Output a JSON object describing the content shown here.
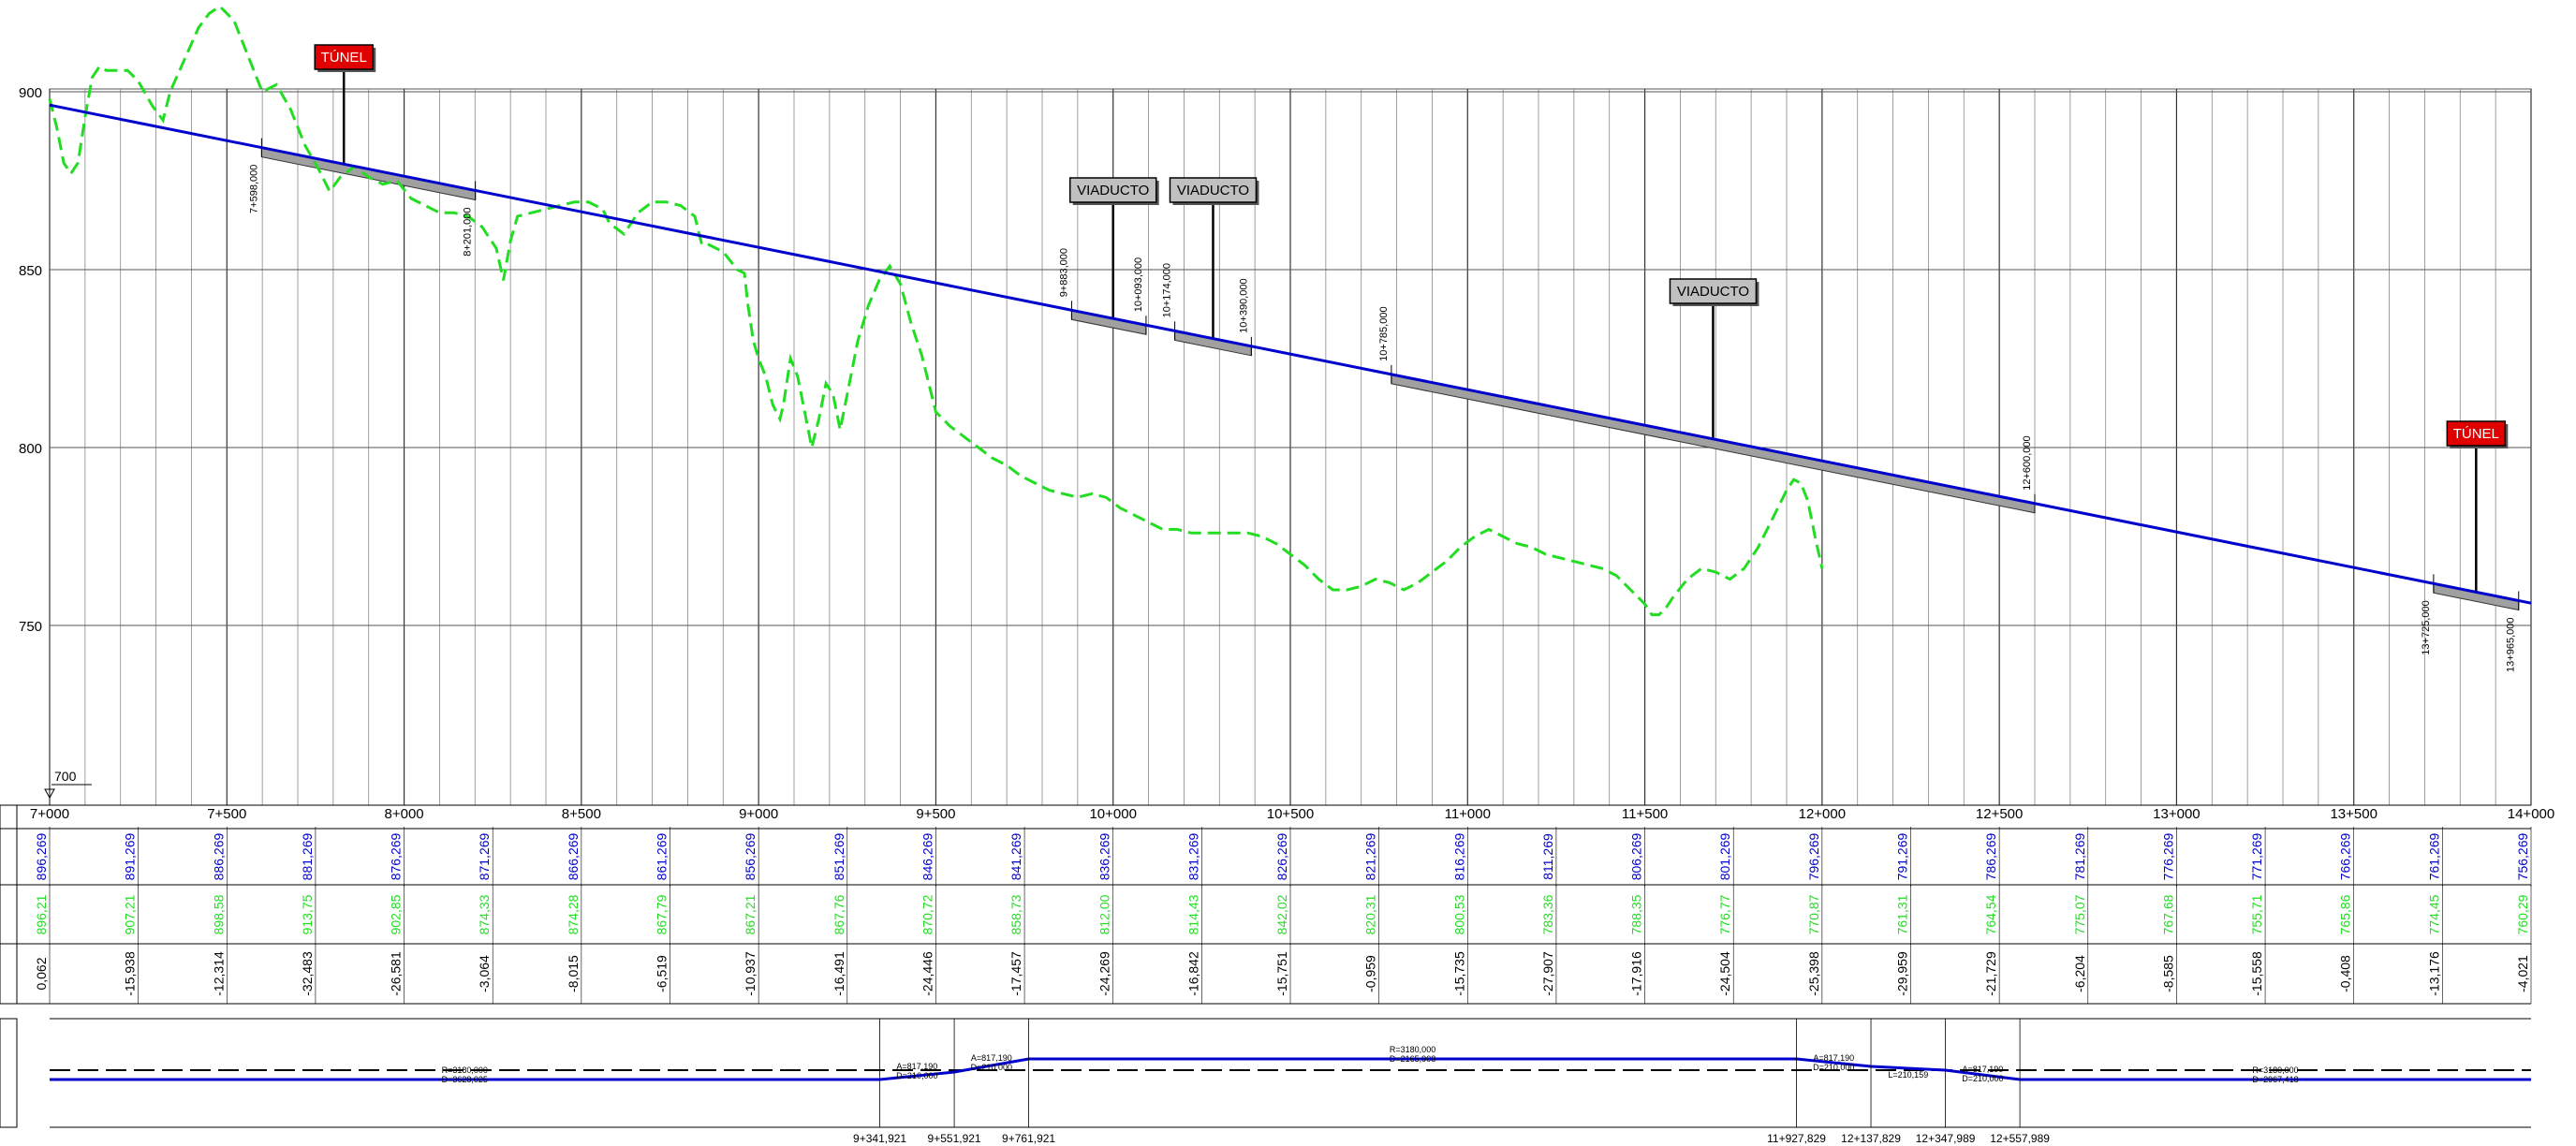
{
  "colors": {
    "grid": "#000000",
    "profile": "#0000cc",
    "terrain": "#22dd22",
    "structure_fill": "#a0a0a0",
    "tunnel": "#e00000",
    "viaduct": "#c0c0c0"
  },
  "profile": {
    "y_ticks": [
      "900",
      "850",
      "800",
      "750"
    ],
    "datum_label": "700",
    "x_ticks": [
      "7+000",
      "7+500",
      "8+000",
      "8+500",
      "9+000",
      "9+500",
      "10+000",
      "10+500",
      "11+000",
      "11+500",
      "12+000",
      "12+500",
      "13+000",
      "13+500",
      "14+000"
    ],
    "rail_start": 896.269,
    "rail_end": 756.269,
    "terrain": [
      [
        7000,
        898
      ],
      [
        7020,
        890
      ],
      [
        7040,
        880
      ],
      [
        7060,
        877
      ],
      [
        7080,
        880
      ],
      [
        7100,
        893
      ],
      [
        7120,
        904
      ],
      [
        7140,
        907
      ],
      [
        7160,
        906
      ],
      [
        7190,
        906
      ],
      [
        7220,
        906
      ],
      [
        7250,
        903
      ],
      [
        7290,
        896
      ],
      [
        7320,
        892
      ],
      [
        7340,
        900
      ],
      [
        7380,
        909
      ],
      [
        7420,
        918
      ],
      [
        7450,
        922
      ],
      [
        7480,
        924
      ],
      [
        7520,
        920
      ],
      [
        7560,
        910
      ],
      [
        7600,
        900
      ],
      [
        7640,
        902
      ],
      [
        7680,
        895
      ],
      [
        7720,
        885
      ],
      [
        7760,
        878
      ],
      [
        7790,
        872
      ],
      [
        7820,
        876
      ],
      [
        7860,
        879
      ],
      [
        7900,
        876
      ],
      [
        7940,
        874
      ],
      [
        7980,
        875
      ],
      [
        8020,
        870
      ],
      [
        8060,
        868
      ],
      [
        8100,
        866
      ],
      [
        8140,
        866
      ],
      [
        8180,
        865
      ],
      [
        8220,
        862
      ],
      [
        8260,
        856
      ],
      [
        8280,
        847
      ],
      [
        8300,
        858
      ],
      [
        8320,
        865
      ],
      [
        8360,
        866
      ],
      [
        8400,
        867
      ],
      [
        8440,
        868
      ],
      [
        8480,
        869
      ],
      [
        8520,
        869
      ],
      [
        8560,
        867
      ],
      [
        8580,
        863
      ],
      [
        8620,
        860
      ],
      [
        8660,
        866
      ],
      [
        8700,
        869
      ],
      [
        8740,
        869
      ],
      [
        8780,
        868
      ],
      [
        8820,
        865
      ],
      [
        8840,
        857
      ],
      [
        8860,
        857
      ],
      [
        8900,
        855
      ],
      [
        8940,
        850
      ],
      [
        8960,
        849
      ],
      [
        8970,
        840
      ],
      [
        8985,
        830
      ],
      [
        9000,
        825
      ],
      [
        9020,
        820
      ],
      [
        9040,
        812
      ],
      [
        9060,
        808
      ],
      [
        9070,
        812
      ],
      [
        9090,
        825
      ],
      [
        9110,
        820
      ],
      [
        9130,
        810
      ],
      [
        9150,
        800
      ],
      [
        9170,
        808
      ],
      [
        9190,
        818
      ],
      [
        9210,
        815
      ],
      [
        9230,
        805
      ],
      [
        9250,
        815
      ],
      [
        9280,
        830
      ],
      [
        9310,
        840
      ],
      [
        9340,
        847
      ],
      [
        9370,
        851
      ],
      [
        9400,
        846
      ],
      [
        9430,
        835
      ],
      [
        9460,
        826
      ],
      [
        9480,
        818
      ],
      [
        9500,
        810
      ],
      [
        9540,
        806
      ],
      [
        9580,
        803
      ],
      [
        9620,
        800
      ],
      [
        9660,
        797
      ],
      [
        9700,
        795
      ],
      [
        9740,
        792
      ],
      [
        9780,
        790
      ],
      [
        9820,
        788
      ],
      [
        9860,
        787
      ],
      [
        9900,
        786
      ],
      [
        9940,
        787
      ],
      [
        9980,
        786
      ],
      [
        10020,
        783
      ],
      [
        10060,
        781
      ],
      [
        10100,
        779
      ],
      [
        10140,
        777
      ],
      [
        10180,
        777
      ],
      [
        10220,
        776
      ],
      [
        10260,
        776
      ],
      [
        10300,
        776
      ],
      [
        10340,
        776
      ],
      [
        10380,
        776
      ],
      [
        10420,
        775
      ],
      [
        10460,
        773
      ],
      [
        10500,
        770
      ],
      [
        10540,
        767
      ],
      [
        10580,
        763
      ],
      [
        10620,
        760
      ],
      [
        10660,
        760
      ],
      [
        10700,
        761
      ],
      [
        10740,
        763
      ],
      [
        10780,
        762
      ],
      [
        10820,
        760
      ],
      [
        10860,
        762
      ],
      [
        10900,
        765
      ],
      [
        10940,
        768
      ],
      [
        10980,
        772
      ],
      [
        11020,
        775
      ],
      [
        11060,
        777
      ],
      [
        11100,
        775
      ],
      [
        11140,
        773
      ],
      [
        11180,
        772
      ],
      [
        11220,
        770
      ],
      [
        11260,
        769
      ],
      [
        11300,
        768
      ],
      [
        11340,
        767
      ],
      [
        11380,
        766
      ],
      [
        11420,
        764
      ],
      [
        11460,
        760
      ],
      [
        11500,
        756
      ],
      [
        11520,
        753
      ],
      [
        11540,
        753
      ],
      [
        11560,
        755
      ],
      [
        11580,
        758
      ],
      [
        11620,
        763
      ],
      [
        11660,
        766
      ],
      [
        11700,
        765
      ],
      [
        11740,
        763
      ],
      [
        11780,
        766
      ],
      [
        11820,
        772
      ],
      [
        11860,
        780
      ],
      [
        11900,
        788
      ],
      [
        11920,
        791
      ],
      [
        11940,
        790
      ],
      [
        11960,
        785
      ],
      [
        11980,
        775
      ],
      [
        12000,
        766
      ]
    ],
    "structures": [
      {
        "type": "tunnel",
        "label": "TÚNEL",
        "start": "7+598,000",
        "end": "8+201,000"
      },
      {
        "type": "viaduct",
        "label": "VIADUCTO",
        "start": "9+883,000",
        "end": "10+093,000"
      },
      {
        "type": "viaduct",
        "label": "VIADUCTO",
        "start": "10+174,000",
        "end": "10+390,000"
      },
      {
        "type": "viaduct",
        "label": "VIADUCTO",
        "start": "10+785,000",
        "end": "12+600,000"
      },
      {
        "type": "tunnel",
        "label": "TÚNEL",
        "start": "13+725,000",
        "end": "13+965,000"
      }
    ]
  },
  "guitar": {
    "rail_levels": [
      "896,269",
      "891,269",
      "886,269",
      "881,269",
      "876,269",
      "871,269",
      "866,269",
      "861,269",
      "856,269",
      "851,269",
      "846,269",
      "841,269",
      "836,269",
      "831,269",
      "826,269",
      "821,269",
      "816,269",
      "811,269",
      "806,269",
      "801,269",
      "796,269",
      "791,269",
      "786,269",
      "781,269",
      "776,269",
      "771,269",
      "766,269",
      "761,269",
      "756,269"
    ],
    "terrain_levels": [
      "896,21",
      "907,21",
      "898,58",
      "913,75",
      "902,85",
      "874,33",
      "874,28",
      "867,79",
      "867,21",
      "867,76",
      "870,72",
      "858,73",
      "812,00",
      "814,43",
      "842,02",
      "820,31",
      "800,53",
      "783,36",
      "788,35",
      "776,77",
      "770,87",
      "761,31",
      "764,54",
      "775,07",
      "767,68",
      "755,71",
      "765,86",
      "774,45",
      "760,29"
    ],
    "differences": [
      "0,062",
      "-15,938",
      "-12,314",
      "-32,483",
      "-26,581",
      "-3,064",
      "-8,015",
      "-6,519",
      "-10,937",
      "-16,491",
      "-24,446",
      "-17,457",
      "-24,269",
      "-16,842",
      "-15,751",
      "-0,959",
      "-15,735",
      "-27,907",
      "-17,916",
      "-24,504",
      "-25,398",
      "-29,959",
      "-21,729",
      "-6,204",
      "-8,585",
      "-15,558",
      "-0,408",
      "-13,176",
      "-4,021"
    ]
  },
  "alignment": {
    "labels": [
      {
        "text": "R=3180,000",
        "line2": "D=3628,025"
      },
      {
        "text": "A=817,190",
        "line2": "D=210,000"
      },
      {
        "text": "A=817,190",
        "line2": "D=210,000"
      },
      {
        "text": "R=3180,000",
        "line2": "D=2165,908"
      },
      {
        "text": "A=817,190",
        "line2": "D=210,000"
      },
      {
        "text": "L=210,159",
        "line2": ""
      },
      {
        "text": "A=817,190",
        "line2": "D=210,000"
      },
      {
        "text": "R=3180,000",
        "line2": "D=2967,418"
      }
    ],
    "stations": [
      "9+341,921",
      "9+551,921",
      "9+761,921",
      "11+927,829",
      "12+137,829",
      "12+347,989",
      "12+557,989"
    ]
  }
}
